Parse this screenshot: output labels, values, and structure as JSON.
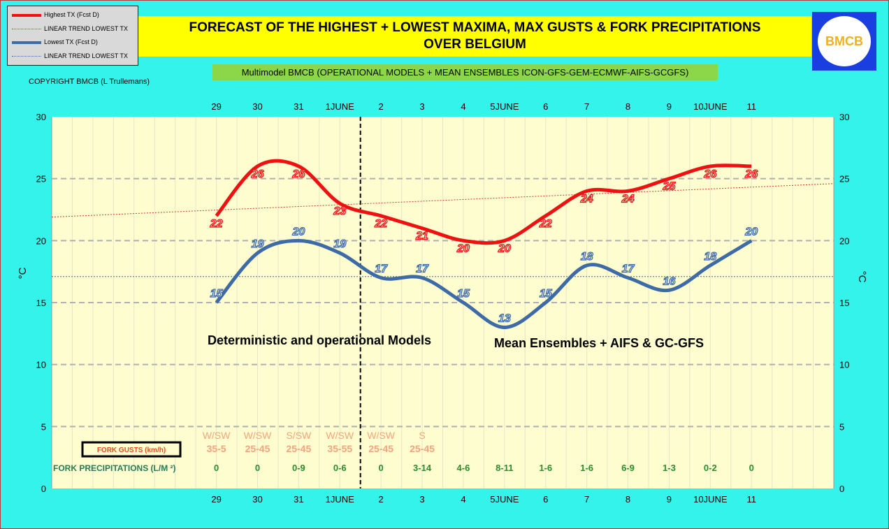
{
  "title_line1": "FORECAST OF THE HIGHEST + LOWEST MAXIMA, MAX GUSTS & FORK PRECIPITATIONS",
  "title_line2": "OVER BELGIUM",
  "subtitle": "Multimodel BMCB (OPERATIONAL MODELS + MEAN ENSEMBLES  ICON-GFS-GEM-ECMWF-AIFS-GCGFS)",
  "copyright": "COPYRIGHT BMCB (L Trullemans)",
  "logo_text": "BMCB",
  "colors": {
    "high": "#ee1111",
    "low": "#3e6aa6",
    "gust": "#f4a47e",
    "precip": "#2e8b2e",
    "background": "#33f3ea",
    "plot": "#fdfdd0"
  },
  "chart_data": {
    "type": "line",
    "categories": [
      "29",
      "30",
      "31",
      "1JUNE",
      "2",
      "3",
      "4",
      "5JUNE",
      "6",
      "7",
      "8",
      "9",
      "10JUNE",
      "11"
    ],
    "ylabel": "°C",
    "ylabel_right": "°C",
    "ylim": [
      0,
      30
    ],
    "yticks": [
      0,
      5,
      10,
      15,
      20,
      25,
      30
    ],
    "series": [
      {
        "name": "Highest TX (Fcst D)",
        "values": [
          22,
          26,
          26,
          23,
          22,
          21,
          20,
          20,
          22,
          24,
          24,
          25,
          26,
          26
        ]
      },
      {
        "name": "LINEAR TREND LOWEST  TX",
        "trend": [
          21.9,
          24.6
        ]
      },
      {
        "name": "Lowest TX (Fcst D)",
        "values": [
          15,
          19,
          20,
          19,
          17,
          17,
          15,
          13,
          15,
          18,
          17,
          16,
          18,
          20
        ]
      },
      {
        "name": "LINEAR TREND LOWEST TX",
        "trend": [
          17.1,
          17.1
        ]
      }
    ],
    "legend": "top-left",
    "grid": true,
    "annotations": {
      "left": "Deterministic and operational Models",
      "right": "Mean Ensembles + AIFS & GC-GFS"
    },
    "gusts_label": "FORK GUSTS (km/h)",
    "gust_dirs": [
      "W/SW",
      "W/SW",
      "S/SW",
      "W/SW",
      "W/SW",
      "S"
    ],
    "gust_speeds": [
      "35-5",
      "25-45",
      "25-45",
      "35-55",
      "25-45",
      "25-45"
    ],
    "precip_label": "FORK PRECIPITATIONS (L/M ²)",
    "precip": [
      "0",
      "0",
      "0-9",
      "0-6",
      "0",
      "3-14",
      "4-6",
      "8-11",
      "1-6",
      "1-6",
      "6-9",
      "1-3",
      "0-2",
      "0"
    ]
  }
}
